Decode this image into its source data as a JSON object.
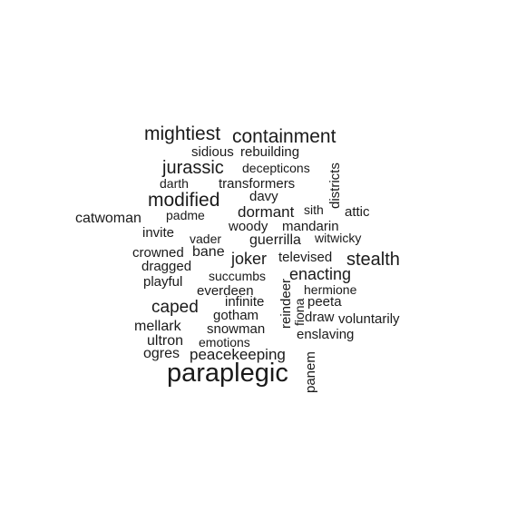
{
  "word_cloud": {
    "words": [
      "mightiest",
      "containment",
      "sidious",
      "rebuilding",
      "jurassic",
      "decepticons",
      "districts",
      "darth",
      "transformers",
      "modified",
      "davy",
      "sith",
      "dormant",
      "attic",
      "catwoman",
      "padme",
      "woody",
      "mandarin",
      "invite",
      "vader",
      "guerrilla",
      "witwicky",
      "crowned",
      "bane",
      "joker",
      "televised",
      "stealth",
      "dragged",
      "succumbs",
      "enacting",
      "playful",
      "reindeer",
      "everdeen",
      "hermione",
      "caped",
      "infinite",
      "fiona",
      "peeta",
      "gotham",
      "draw",
      "voluntarily",
      "mellark",
      "snowman",
      "enslaving",
      "ultron",
      "emotions",
      "ogres",
      "peacekeeping",
      "panem",
      "paraplegic"
    ]
  }
}
